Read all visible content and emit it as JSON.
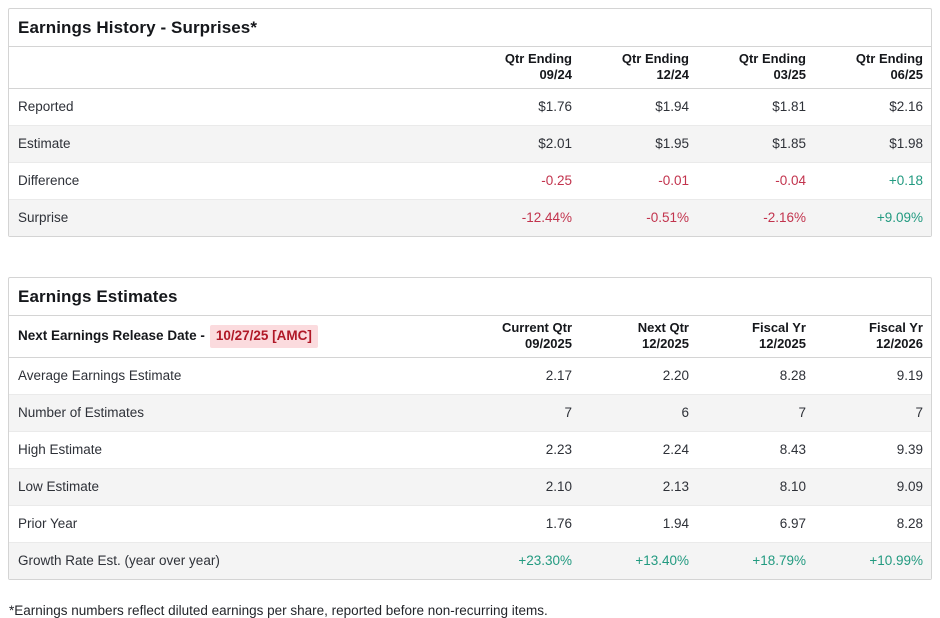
{
  "colors": {
    "negative": "#c2334d",
    "positive": "#229a80",
    "highlight-bg": "#fbdbde",
    "highlight-text": "#b01827"
  },
  "surprises": {
    "title": "Earnings History - Surprises*",
    "columns": [
      {
        "line1": "Qtr Ending",
        "line2": "09/24"
      },
      {
        "line1": "Qtr Ending",
        "line2": "12/24"
      },
      {
        "line1": "Qtr Ending",
        "line2": "03/25"
      },
      {
        "line1": "Qtr Ending",
        "line2": "06/25"
      }
    ],
    "rows": [
      {
        "label": "Reported",
        "values": [
          "$1.76",
          "$1.94",
          "$1.81",
          "$2.16"
        ]
      },
      {
        "label": "Estimate",
        "values": [
          "$2.01",
          "$1.95",
          "$1.85",
          "$1.98"
        ]
      },
      {
        "label": "Difference",
        "values": [
          "-0.25",
          "-0.01",
          "-0.04",
          "+0.18"
        ]
      },
      {
        "label": "Surprise",
        "values": [
          "-12.44%",
          "-0.51%",
          "-2.16%",
          "+9.09%"
        ]
      }
    ]
  },
  "estimates": {
    "title": "Earnings Estimates",
    "release_label": "Next Earnings Release Date -",
    "release_date": "10/27/25 [AMC]",
    "columns": [
      {
        "line1": "Current Qtr",
        "line2": "09/2025"
      },
      {
        "line1": "Next Qtr",
        "line2": "12/2025"
      },
      {
        "line1": "Fiscal Yr",
        "line2": "12/2025"
      },
      {
        "line1": "Fiscal Yr",
        "line2": "12/2026"
      }
    ],
    "rows": [
      {
        "label": "Average Earnings Estimate",
        "values": [
          "2.17",
          "2.20",
          "8.28",
          "9.19"
        ]
      },
      {
        "label": "Number of Estimates",
        "values": [
          "7",
          "6",
          "7",
          "7"
        ]
      },
      {
        "label": "High Estimate",
        "values": [
          "2.23",
          "2.24",
          "8.43",
          "9.39"
        ]
      },
      {
        "label": "Low Estimate",
        "values": [
          "2.10",
          "2.13",
          "8.10",
          "9.09"
        ]
      },
      {
        "label": "Prior Year",
        "values": [
          "1.76",
          "1.94",
          "6.97",
          "8.28"
        ]
      },
      {
        "label": "Growth Rate Est. (year over year)",
        "values": [
          "+23.30%",
          "+13.40%",
          "+18.79%",
          "+10.99%"
        ]
      }
    ]
  },
  "footnote": "*Earnings numbers reflect diluted earnings per share, reported before non-recurring items."
}
